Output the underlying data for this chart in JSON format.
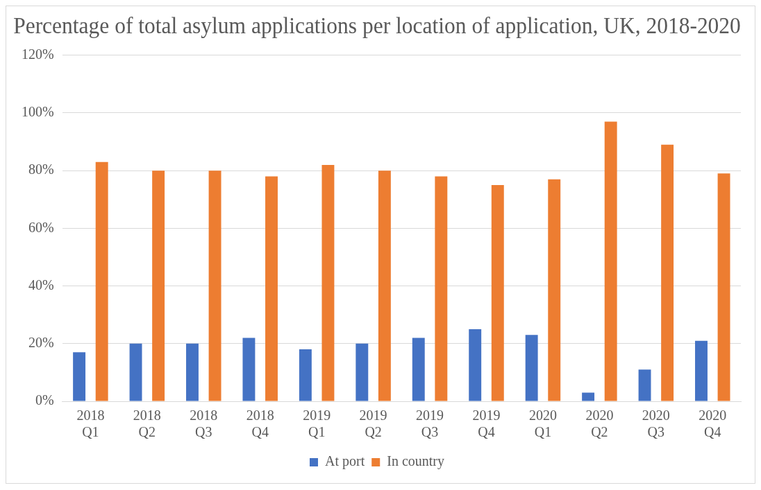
{
  "chart_data": {
    "type": "bar",
    "title": "Percentage of total asylum applications per location of application, UK, 2018-2020",
    "categories": [
      "2018 Q1",
      "2018 Q2",
      "2018 Q3",
      "2018 Q4",
      "2019 Q1",
      "2019 Q2",
      "2019 Q3",
      "2019 Q4",
      "2020 Q1",
      "2020 Q2",
      "2020 Q3",
      "2020 Q4"
    ],
    "series": [
      {
        "name": "At port",
        "color": "#4472c4",
        "values": [
          17,
          20,
          20,
          22,
          18,
          20,
          22,
          25,
          23,
          3,
          11,
          21
        ]
      },
      {
        "name": "In country",
        "color": "#ed7d31",
        "values": [
          83,
          80,
          80,
          78,
          82,
          80,
          78,
          75,
          77,
          97,
          89,
          79
        ]
      }
    ],
    "ylim": [
      0,
      120
    ],
    "yticks": [
      {
        "value": 0,
        "label": "0%"
      },
      {
        "value": 20,
        "label": "20%"
      },
      {
        "value": 40,
        "label": "40%"
      },
      {
        "value": 60,
        "label": "60%"
      },
      {
        "value": 80,
        "label": "80%"
      },
      {
        "value": 100,
        "label": "100%"
      },
      {
        "value": 120,
        "label": "120%"
      }
    ],
    "grid": "y",
    "legend": "bottom"
  }
}
